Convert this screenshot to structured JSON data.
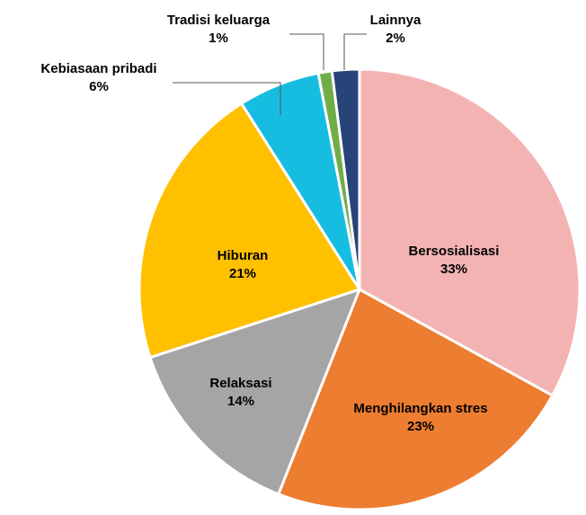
{
  "chart_data": {
    "type": "pie",
    "categories": [
      "Bersosialisasi",
      "Menghilangkan stres",
      "Relaksasi",
      "Hiburan",
      "Kebiasaan pribadi",
      "Tradisi keluarga",
      "Lainnya"
    ],
    "values": [
      33,
      23,
      14,
      21,
      6,
      1,
      2
    ],
    "value_labels": [
      "33%",
      "23%",
      "14%",
      "21%",
      "6%",
      "1%",
      "2%"
    ],
    "colors": [
      "#f4b3b3",
      "#ed7d31",
      "#a5a5a5",
      "#ffc000",
      "#17bde0",
      "#70ad47",
      "#264478"
    ]
  }
}
